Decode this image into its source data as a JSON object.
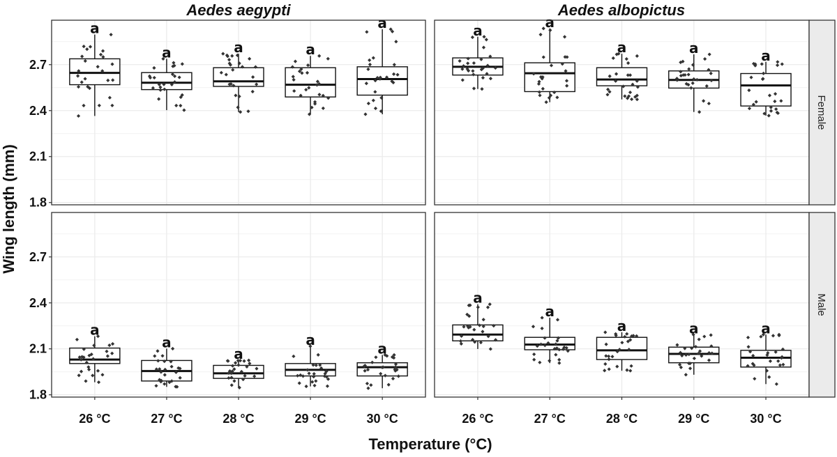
{
  "chart_data": {
    "type": "boxplot",
    "xlabel": "Temperature (°C)",
    "ylabel": "Wing length (mm)",
    "categories": [
      "26 °C",
      "27 °C",
      "28 °C",
      "29 °C",
      "30 °C"
    ],
    "yticks": [
      1.8,
      2.1,
      2.4,
      2.7
    ],
    "ylim": [
      1.785,
      2.99
    ],
    "grid": true,
    "columns": [
      "Aedes aegypti",
      "Aedes albopictus"
    ],
    "rows": [
      "Female",
      "Male"
    ],
    "colors": {
      "box_fill": "#ffffff",
      "box_line": "#111111",
      "points": "#333333",
      "grid": "#ebebeb",
      "strip": "#ebebeb"
    },
    "facets": [
      {
        "species": "Aedes aegypti",
        "sex": "Female",
        "groups": [
          {
            "temp": "26 °C",
            "lower": 2.365,
            "q1": 2.569,
            "median": 2.646,
            "q3": 2.738,
            "upper": 2.896,
            "letter": "a"
          },
          {
            "temp": "27 °C",
            "lower": 2.403,
            "q1": 2.537,
            "median": 2.582,
            "q3": 2.648,
            "upper": 2.738,
            "letter": "a"
          },
          {
            "temp": "28 °C",
            "lower": 2.391,
            "q1": 2.558,
            "median": 2.591,
            "q3": 2.68,
            "upper": 2.771,
            "letter": "a"
          },
          {
            "temp": "29 °C",
            "lower": 2.376,
            "q1": 2.489,
            "median": 2.569,
            "q3": 2.68,
            "upper": 2.757,
            "letter": "a"
          },
          {
            "temp": "30 °C",
            "lower": 2.376,
            "q1": 2.501,
            "median": 2.606,
            "q3": 2.686,
            "upper": 2.931,
            "letter": "a"
          }
        ]
      },
      {
        "species": "Aedes albopictus",
        "sex": "Female",
        "groups": [
          {
            "temp": "26 °C",
            "lower": 2.541,
            "q1": 2.632,
            "median": 2.686,
            "q3": 2.744,
            "upper": 2.882,
            "letter": "a"
          },
          {
            "temp": "27 °C",
            "lower": 2.455,
            "q1": 2.524,
            "median": 2.644,
            "q3": 2.712,
            "upper": 2.936,
            "letter": "a"
          },
          {
            "temp": "28 °C",
            "lower": 2.473,
            "q1": 2.562,
            "median": 2.603,
            "q3": 2.68,
            "upper": 2.771,
            "letter": "a"
          },
          {
            "temp": "29 °C",
            "lower": 2.391,
            "q1": 2.547,
            "median": 2.6,
            "q3": 2.659,
            "upper": 2.767,
            "letter": "a"
          },
          {
            "temp": "30 °C",
            "lower": 2.367,
            "q1": 2.43,
            "median": 2.564,
            "q3": 2.642,
            "upper": 2.718,
            "letter": "a"
          }
        ]
      },
      {
        "species": "Aedes aegypti",
        "sex": "Male",
        "groups": [
          {
            "temp": "26 °C",
            "lower": 1.882,
            "q1": 2.004,
            "median": 2.03,
            "q3": 2.105,
            "upper": 2.182,
            "letter": "a"
          },
          {
            "temp": "27 °C",
            "lower": 1.852,
            "q1": 1.89,
            "median": 1.955,
            "q3": 2.024,
            "upper": 2.101,
            "letter": "a"
          },
          {
            "temp": "28 °C",
            "lower": 1.847,
            "q1": 1.907,
            "median": 1.94,
            "q3": 1.992,
            "upper": 2.025,
            "letter": "a"
          },
          {
            "temp": "29 °C",
            "lower": 1.855,
            "q1": 1.923,
            "median": 1.963,
            "q3": 2.004,
            "upper": 2.117,
            "letter": "a"
          },
          {
            "temp": "30 °C",
            "lower": 1.843,
            "q1": 1.923,
            "median": 1.98,
            "q3": 2.009,
            "upper": 2.06,
            "letter": "a"
          }
        ]
      },
      {
        "species": "Aedes albopictus",
        "sex": "Male",
        "groups": [
          {
            "temp": "26 °C",
            "lower": 2.099,
            "q1": 2.152,
            "median": 2.193,
            "q3": 2.256,
            "upper": 2.391,
            "letter": "a"
          },
          {
            "temp": "27 °C",
            "lower": 2.007,
            "q1": 2.094,
            "median": 2.128,
            "q3": 2.175,
            "upper": 2.303,
            "letter": "a"
          },
          {
            "temp": "28 °C",
            "lower": 1.957,
            "q1": 2.03,
            "median": 2.09,
            "q3": 2.175,
            "upper": 2.208,
            "letter": "a"
          },
          {
            "temp": "29 °C",
            "lower": 1.931,
            "q1": 2.009,
            "median": 2.067,
            "q3": 2.111,
            "upper": 2.193,
            "letter": "a"
          },
          {
            "temp": "30 °C",
            "lower": 1.87,
            "q1": 1.981,
            "median": 2.042,
            "q3": 2.09,
            "upper": 2.193,
            "letter": "a"
          }
        ]
      }
    ]
  }
}
